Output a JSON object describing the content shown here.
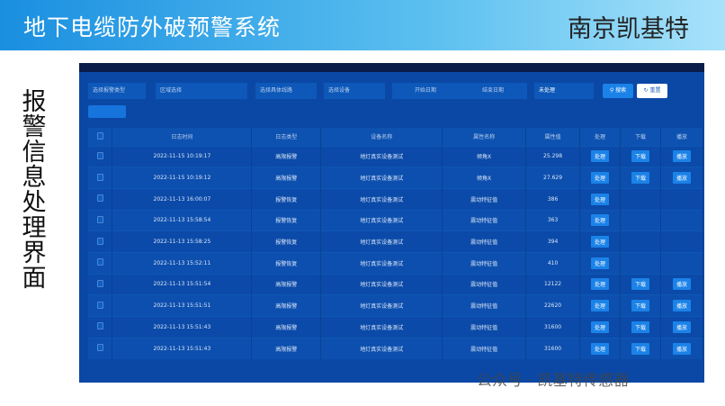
{
  "header": {
    "title": "地下电缆防外破预警系统",
    "brand": "南京凯基特"
  },
  "side_title": "报警信息处理界面",
  "filters": {
    "alarm_type": "选择报警类型",
    "area": "区域选择",
    "line": "选择具体线路",
    "device": "选择设备",
    "start_date": "开始日期",
    "end_date": "结束日期",
    "status": "未处理",
    "search": "搜索",
    "reset": "重置"
  },
  "icons": {
    "search": "search-icon",
    "reset": "refresh-icon"
  },
  "table": {
    "headers": [
      "日志时间",
      "日志类型",
      "设备名称",
      "属性名称",
      "属性值",
      "处理",
      "下载",
      "播放"
    ],
    "action_labels": {
      "handle": "处理",
      "download": "下载",
      "play": "播放"
    },
    "rows": [
      {
        "time": "2022-11-15 10:19:17",
        "type": "高限报警",
        "device": "地灯真实设备测试",
        "attr": "倾角X",
        "value": "25.298",
        "download": true,
        "play": true
      },
      {
        "time": "2022-11-15 10:19:12",
        "type": "高限报警",
        "device": "地灯真实设备测试",
        "attr": "倾角X",
        "value": "27.629",
        "download": true,
        "play": true
      },
      {
        "time": "2022-11-13 16:00:07",
        "type": "报警恢复",
        "device": "地灯真实设备测试",
        "attr": "震动特征值",
        "value": "386",
        "download": false,
        "play": false
      },
      {
        "time": "2022-11-13 15:58:54",
        "type": "报警恢复",
        "device": "地灯真实设备测试",
        "attr": "震动特征值",
        "value": "363",
        "download": false,
        "play": false
      },
      {
        "time": "2022-11-13 15:58:25",
        "type": "报警恢复",
        "device": "地灯真实设备测试",
        "attr": "震动特征值",
        "value": "394",
        "download": false,
        "play": false
      },
      {
        "time": "2022-11-13 15:52:11",
        "type": "报警恢复",
        "device": "地灯真实设备测试",
        "attr": "震动特征值",
        "value": "410",
        "download": false,
        "play": false
      },
      {
        "time": "2022-11-13 15:51:54",
        "type": "高限报警",
        "device": "地灯真实设备测试",
        "attr": "震动特征值",
        "value": "12122",
        "download": true,
        "play": true
      },
      {
        "time": "2022-11-13 15:51:51",
        "type": "高限报警",
        "device": "地灯真实设备测试",
        "attr": "震动特征值",
        "value": "22620",
        "download": true,
        "play": true
      },
      {
        "time": "2022-11-13 15:51:43",
        "type": "高限报警",
        "device": "地灯真实设备测试",
        "attr": "震动特征值",
        "value": "31600",
        "download": true,
        "play": true
      },
      {
        "time": "2022-11-13 15:51:43",
        "type": "高限报警",
        "device": "地灯真实设备测试",
        "attr": "震动特征值",
        "value": "31600",
        "download": true,
        "play": true
      }
    ]
  },
  "watermark": "公众号 · 凯基特传感器"
}
